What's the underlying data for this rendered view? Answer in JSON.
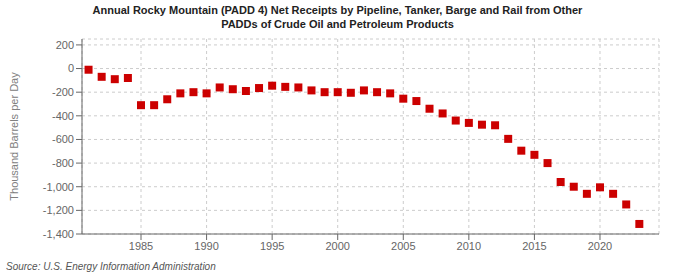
{
  "chart_data": {
    "type": "scatter",
    "title": "Annual Rocky Mountain (PADD 4) Net Receipts by Pipeline, Tanker, Barge and Rail from Other\nPADDs of Crude Oil and Petroleum Products",
    "ylabel": "Thousand Barrels per Day",
    "annotations": [
      "Source: U.S. Energy Information Administration"
    ],
    "x": [
      1981,
      1982,
      1983,
      1984,
      1985,
      1986,
      1987,
      1988,
      1989,
      1990,
      1991,
      1992,
      1993,
      1994,
      1995,
      1996,
      1997,
      1998,
      1999,
      2000,
      2001,
      2002,
      2003,
      2004,
      2005,
      2006,
      2007,
      2008,
      2009,
      2010,
      2011,
      2012,
      2013,
      2014,
      2015,
      2016,
      2017,
      2018,
      2019,
      2020,
      2021,
      2022,
      2023
    ],
    "values": [
      -10,
      -70,
      -90,
      -80,
      -310,
      -310,
      -260,
      -210,
      -200,
      -210,
      -160,
      -175,
      -190,
      -165,
      -145,
      -155,
      -160,
      -185,
      -200,
      -200,
      -205,
      -185,
      -200,
      -210,
      -255,
      -275,
      -340,
      -380,
      -440,
      -460,
      -475,
      -480,
      -595,
      -695,
      -730,
      -800,
      -960,
      -1000,
      -1060,
      -1005,
      -1060,
      -1150,
      -1315
    ],
    "color": "#cc0000",
    "marker": "square",
    "xlim": [
      1980.5,
      2024.5
    ],
    "xticks": [
      1985,
      1990,
      1995,
      2000,
      2005,
      2010,
      2015,
      2020
    ],
    "ylim": [
      -1400,
      250
    ],
    "yticks": [
      200,
      0,
      -200,
      -400,
      -600,
      -800,
      {
        "value": -1000,
        "label": "-1,000"
      },
      {
        "value": -1200,
        "label": "-1,200"
      },
      {
        "value": -1400,
        "label": "-1,400"
      }
    ],
    "grid": true
  }
}
